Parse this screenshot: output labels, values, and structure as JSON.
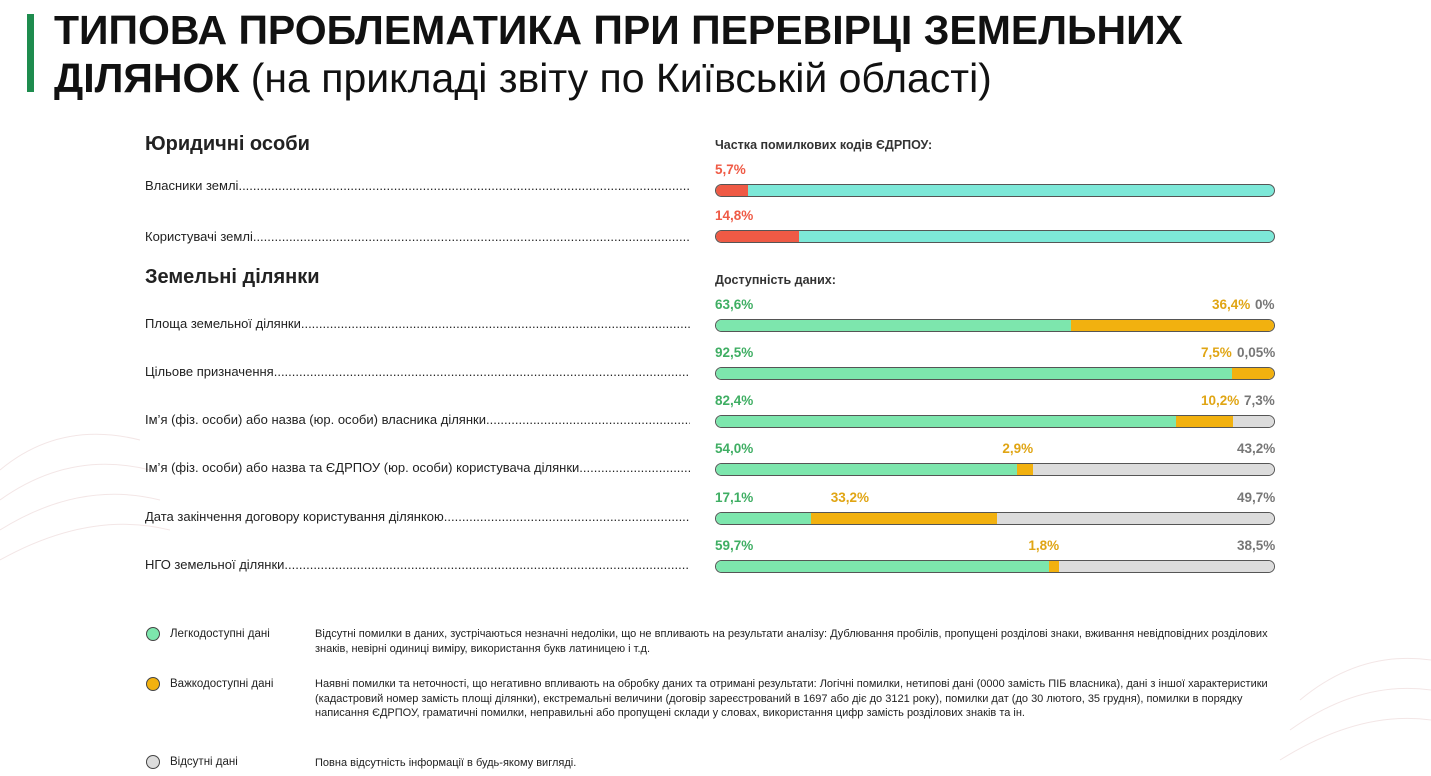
{
  "title": {
    "line1": "ТИПОВА ПРОБЛЕМАТИКА ПРИ ПЕРЕВІРЦІ ЗЕМЕЛЬНИХ",
    "line2_bold": "ДІЛЯНОК",
    "line2_normal": " (на прикладі звіту по Київській області)"
  },
  "sections": {
    "legal": "Юридичні особи",
    "land": "Земельні ділянки"
  },
  "colors": {
    "easy": "#7de6ad",
    "hard": "#f2b10f",
    "missing": "#dcdcdc",
    "error": "#ef5a45",
    "correct": "#7de8d8",
    "accent": "#1e8c4e"
  },
  "chart_data": [
    {
      "type": "bar",
      "title": "Частка помилкових кодів ЄДРПОУ:",
      "categories": [
        "Власники землі",
        "Користувачі землі"
      ],
      "values": [
        5.7,
        14.8
      ],
      "value_labels": [
        "5,7%",
        "14,8%"
      ],
      "xlim": [
        0,
        100
      ]
    },
    {
      "type": "bar",
      "stacked": true,
      "title": "Доступність даних:",
      "categories": [
        "Площа земельної ділянки",
        "Цільове призначення",
        "Ім’я (фіз. особи) або назва (юр. особи) власника ділянки",
        "Ім’я (фіз. особи) або назва та ЄДРПОУ (юр. особи) користувача ділянки",
        "Дата закінчення договору користування ділянкою",
        "НГО земельної ділянки"
      ],
      "series": [
        {
          "name": "Легкодоступні дані",
          "values": [
            63.6,
            92.5,
            82.4,
            54.0,
            17.1,
            59.7
          ],
          "labels": [
            "63,6%",
            "92,5%",
            "82,4%",
            "54,0%",
            "17,1%",
            "59,7%"
          ]
        },
        {
          "name": "Важкодоступні дані",
          "values": [
            36.4,
            7.5,
            10.2,
            2.9,
            33.2,
            1.8
          ],
          "labels": [
            "36,4%",
            "7,5%",
            "10,2%",
            "2,9%",
            "33,2%",
            "1,8%"
          ]
        },
        {
          "name": "Відсутні дані",
          "values": [
            0,
            0.05,
            7.3,
            43.2,
            49.7,
            38.5
          ],
          "labels": [
            "0%",
            "0,05%",
            "7,3%",
            "43,2%",
            "49,7%",
            "38,5%"
          ]
        }
      ],
      "xlim": [
        0,
        100
      ]
    }
  ],
  "legend": [
    {
      "label": "Легкодоступні дані",
      "desc": "Відсутні помилки в даних, зустрічаються незначні недоліки, що не впливають на результати аналізу: Дублювання пробілів, пропущені розділові знаки, вживання невідповідних розділових знаків, невірні одиниці виміру, використання букв латиницею і т.д."
    },
    {
      "label": "Важкодоступні дані",
      "desc": "Наявні помилки та неточності, що негативно впливають на обробку даних та отримані результати: Логічні помилки, нетипові дані (0000 замість ПІБ власника), дані з іншої характеристики (кадастровий номер замість площі ділянки), екстремальні величини (договір зареєстрований в 1697 або діє до 3121 року), помилки дат (до 30 лютого, 35 грудня), помилки в порядку написання ЄДРПОУ, граматичні помилки, неправильні або пропущені склади у словах, використання цифр замість розділових знаків та ін."
    },
    {
      "label": "Відсутні дані",
      "desc": "Повна відсутність інформації в будь-якому вигляді."
    }
  ]
}
